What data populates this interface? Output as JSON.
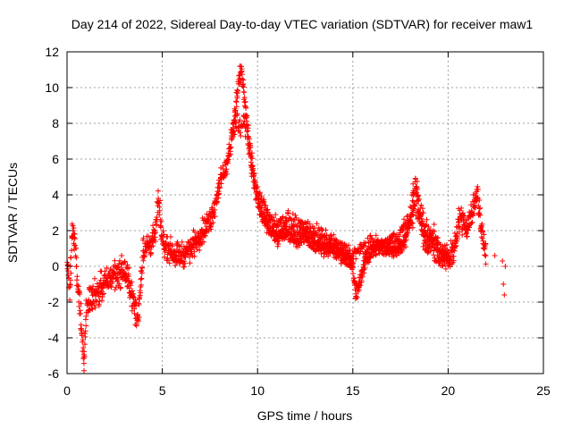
{
  "chart_data": {
    "type": "scatter",
    "title": "Day 214 of 2022, Sidereal Day-to-day VTEC variation (SDTVAR) for receiver maw1",
    "xlabel": "GPS time / hours",
    "ylabel": "SDTVAR / TECUs",
    "xlim": [
      0,
      25
    ],
    "ylim": [
      -6,
      12
    ],
    "xticks": [
      0,
      5,
      10,
      15,
      20,
      25
    ],
    "yticks": [
      -6,
      -4,
      -2,
      0,
      2,
      4,
      6,
      8,
      10,
      12
    ],
    "grid": true,
    "marker": "+",
    "color": "#ff0000",
    "series": [
      {
        "name": "SDTVAR",
        "trend": [
          [
            0.0,
            0.2
          ],
          [
            0.15,
            -1.3
          ],
          [
            0.25,
            1.6
          ],
          [
            0.35,
            2.0
          ],
          [
            0.45,
            0.5
          ],
          [
            0.55,
            -0.7
          ],
          [
            0.65,
            -2.0
          ],
          [
            0.75,
            -3.2
          ],
          [
            0.82,
            -4.6
          ],
          [
            0.9,
            -5.0
          ],
          [
            1.0,
            -2.6
          ],
          [
            1.2,
            -1.8
          ],
          [
            1.5,
            -1.5
          ],
          [
            2.0,
            -1.0
          ],
          [
            2.5,
            -0.4
          ],
          [
            3.0,
            -0.3
          ],
          [
            3.3,
            -1.0
          ],
          [
            3.5,
            -2.2
          ],
          [
            3.7,
            -3.0
          ],
          [
            3.85,
            -1.2
          ],
          [
            4.0,
            1.0
          ],
          [
            4.3,
            1.2
          ],
          [
            4.6,
            1.6
          ],
          [
            4.8,
            3.6
          ],
          [
            5.0,
            1.4
          ],
          [
            5.5,
            0.8
          ],
          [
            6.0,
            0.6
          ],
          [
            6.5,
            1.0
          ],
          [
            7.0,
            1.8
          ],
          [
            7.5,
            2.5
          ],
          [
            7.8,
            3.6
          ],
          [
            8.0,
            4.6
          ],
          [
            8.3,
            5.4
          ],
          [
            8.5,
            6.2
          ],
          [
            8.8,
            8.5
          ],
          [
            9.0,
            10.2
          ],
          [
            9.15,
            11.0
          ],
          [
            9.35,
            9.0
          ],
          [
            9.6,
            6.5
          ],
          [
            9.8,
            5.0
          ],
          [
            10.0,
            3.6
          ],
          [
            10.3,
            2.6
          ],
          [
            10.6,
            2.2
          ],
          [
            11.0,
            1.6
          ],
          [
            11.5,
            1.9
          ],
          [
            12.0,
            1.5
          ],
          [
            12.5,
            1.8
          ],
          [
            13.0,
            1.2
          ],
          [
            13.5,
            1.0
          ],
          [
            14.0,
            0.9
          ],
          [
            14.5,
            0.6
          ],
          [
            15.0,
            0.0
          ],
          [
            15.15,
            -1.7
          ],
          [
            15.4,
            -0.6
          ],
          [
            15.8,
            0.6
          ],
          [
            16.2,
            1.1
          ],
          [
            16.8,
            1.0
          ],
          [
            17.3,
            0.9
          ],
          [
            17.8,
            1.6
          ],
          [
            18.1,
            3.2
          ],
          [
            18.3,
            4.8
          ],
          [
            18.5,
            2.8
          ],
          [
            18.8,
            1.4
          ],
          [
            19.2,
            1.6
          ],
          [
            19.6,
            0.8
          ],
          [
            20.0,
            0.4
          ],
          [
            20.3,
            0.9
          ],
          [
            20.6,
            2.8
          ],
          [
            21.0,
            2.2
          ],
          [
            21.3,
            3.2
          ],
          [
            21.5,
            4.3
          ],
          [
            21.7,
            2.4
          ],
          [
            22.0,
            0.6
          ]
        ],
        "alt_trend": [
          [
            8.7,
            7.3
          ],
          [
            8.9,
            8.1
          ],
          [
            9.1,
            7.6
          ],
          [
            9.3,
            8.2
          ],
          [
            9.5,
            7.0
          ],
          [
            9.7,
            5.6
          ],
          [
            9.9,
            4.4
          ],
          [
            10.1,
            4.0
          ],
          [
            10.4,
            3.3
          ],
          [
            10.7,
            2.6
          ],
          [
            11.0,
            2.4
          ],
          [
            11.5,
            2.6
          ],
          [
            12.0,
            2.4
          ],
          [
            12.5,
            2.1
          ],
          [
            13.0,
            2.0
          ],
          [
            13.5,
            1.6
          ],
          [
            14.0,
            1.3
          ],
          [
            14.5,
            1.0
          ],
          [
            15.0,
            0.6
          ],
          [
            15.5,
            1.0
          ],
          [
            16.0,
            1.3
          ],
          [
            16.5,
            1.2
          ],
          [
            17.0,
            1.4
          ],
          [
            17.5,
            1.9
          ],
          [
            18.0,
            2.6
          ],
          [
            18.4,
            3.4
          ],
          [
            18.8,
            2.2
          ],
          [
            19.2,
            1.0
          ],
          [
            19.6,
            0.5
          ],
          [
            20.0,
            0.4
          ]
        ],
        "isolated_points": [
          [
            22.45,
            0.6
          ],
          [
            22.85,
            0.3
          ],
          [
            22.9,
            -1.0
          ],
          [
            22.95,
            -1.6
          ],
          [
            23.0,
            0.0
          ]
        ]
      }
    ]
  }
}
